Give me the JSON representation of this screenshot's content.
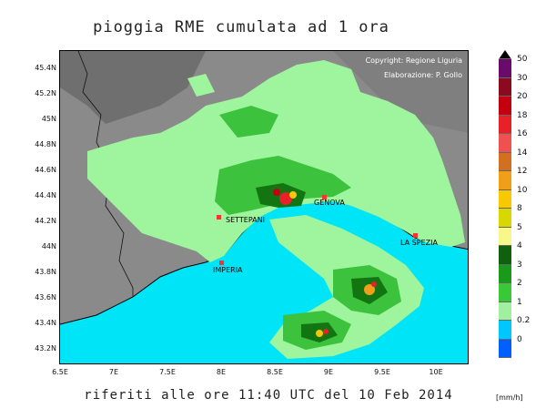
{
  "title": "pioggia RME cumulata ad 1 ora",
  "subtitle": "riferiti alle ore 11:40 UTC del 10 Feb 2014",
  "credits": {
    "copyright": "Copyright: Regione Liguria",
    "elaboration": "Elaborazione: P. Gollo"
  },
  "lat_ticks": [
    "45.4N",
    "45.2N",
    "45N",
    "44.8N",
    "44.6N",
    "44.4N",
    "44.2N",
    "44N",
    "43.8N",
    "43.6N",
    "43.4N",
    "43.2N"
  ],
  "lon_ticks": [
    "6.5E",
    "7E",
    "7.5E",
    "8E",
    "8.5E",
    "9E",
    "9.5E",
    "10E"
  ],
  "cities": [
    {
      "name": "GENOVA",
      "lon": 8.93,
      "lat": 44.4
    },
    {
      "name": "SETTEPANI",
      "lon": 8.2,
      "lat": 44.25
    },
    {
      "name": "IMPERIA",
      "lon": 8.02,
      "lat": 43.88
    },
    {
      "name": "LA SPEZIA",
      "lon": 9.82,
      "lat": 44.1
    }
  ],
  "legend": {
    "unit": "[mm/h]",
    "levels": [
      {
        "label": "50",
        "color": "#6a0a6a"
      },
      {
        "label": "30",
        "color": "#8b0a1e"
      },
      {
        "label": "20",
        "color": "#c40010"
      },
      {
        "label": "18",
        "color": "#e8202a"
      },
      {
        "label": "16",
        "color": "#f0504f"
      },
      {
        "label": "14",
        "color": "#d07020"
      },
      {
        "label": "12",
        "color": "#f0a018"
      },
      {
        "label": "10",
        "color": "#f8c800"
      },
      {
        "label": "8",
        "color": "#d8d800"
      },
      {
        "label": "5",
        "color": "#f8f88a"
      },
      {
        "label": "4",
        "color": "#106010"
      },
      {
        "label": "3",
        "color": "#1a9a1a"
      },
      {
        "label": "2",
        "color": "#38c838"
      },
      {
        "label": "1",
        "color": "#a0f0a0"
      },
      {
        "label": "0.2",
        "color": "#00c8ff"
      },
      {
        "label": "0",
        "color": "#0060ff"
      }
    ]
  },
  "colors": {
    "land": "#8a8a8a",
    "sea": "#00e4f8",
    "light_rain": "#9ef59e",
    "moderate_rain": "#3cc23c",
    "heavy_rain": "#127512",
    "city_marker": "#ff3030"
  }
}
